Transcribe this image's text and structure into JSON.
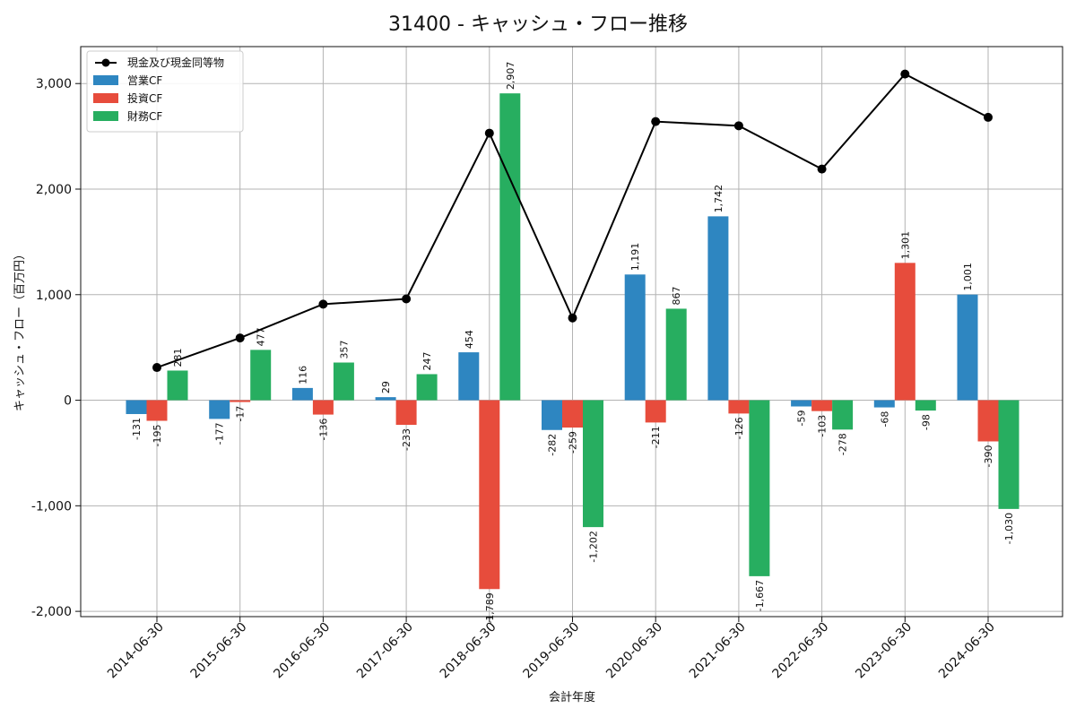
{
  "chart_data": {
    "type": "bar",
    "title": "31400 - キャッシュ・フロー推移",
    "xlabel": "会計年度",
    "ylabel": "キャッシュ・フロー（百万円）",
    "categories": [
      "2014-06-30",
      "2015-06-30",
      "2016-06-30",
      "2017-06-30",
      "2018-06-30",
      "2019-06-30",
      "2020-06-30",
      "2021-06-30",
      "2022-06-30",
      "2023-06-30",
      "2024-06-30"
    ],
    "ylim": [
      -2050,
      3350
    ],
    "yticks": [
      -2000,
      -1000,
      0,
      1000,
      2000,
      3000
    ],
    "ytick_labels": [
      "-2,000",
      "-1,000",
      "0",
      "1,000",
      "2,000",
      "3,000"
    ],
    "grid": true,
    "legend_position": "top-left",
    "legend": [
      "現金及び現金同等物",
      "営業CF",
      "投資CF",
      "財務CF"
    ],
    "series": [
      {
        "name": "営業CF",
        "kind": "bar",
        "color": "#2E86C1",
        "values": [
          -131,
          -177,
          116,
          29,
          454,
          -282,
          1191,
          1742,
          -59,
          -68,
          1001
        ],
        "labels": [
          "-131",
          "-177",
          "116",
          "29",
          "454",
          "-282",
          "1,191",
          "1,742",
          "-59",
          "-68",
          "1,001"
        ]
      },
      {
        "name": "投資CF",
        "kind": "bar",
        "color": "#E74C3C",
        "values": [
          -195,
          -17,
          -136,
          -233,
          -1789,
          -259,
          -211,
          -126,
          -103,
          1301,
          -390
        ],
        "labels": [
          "-195",
          "-17",
          "-136",
          "-233",
          "-1,789",
          "-259",
          "-211",
          "-126",
          "-103",
          "1,301",
          "-390"
        ]
      },
      {
        "name": "財務CF",
        "kind": "bar",
        "color": "#27AE60",
        "values": [
          281,
          477,
          357,
          247,
          2907,
          -1202,
          867,
          -1667,
          -278,
          -98,
          -1030
        ],
        "labels": [
          "281",
          "477",
          "357",
          "247",
          "2,907",
          "-1,202",
          "867",
          "-1,667",
          "-278",
          "-98",
          "-1,030"
        ]
      },
      {
        "name": "現金及び現金同等物",
        "kind": "line",
        "color": "#000000",
        "values": [
          310,
          590,
          910,
          960,
          2530,
          780,
          2640,
          2600,
          2190,
          3090,
          2680
        ]
      }
    ]
  }
}
